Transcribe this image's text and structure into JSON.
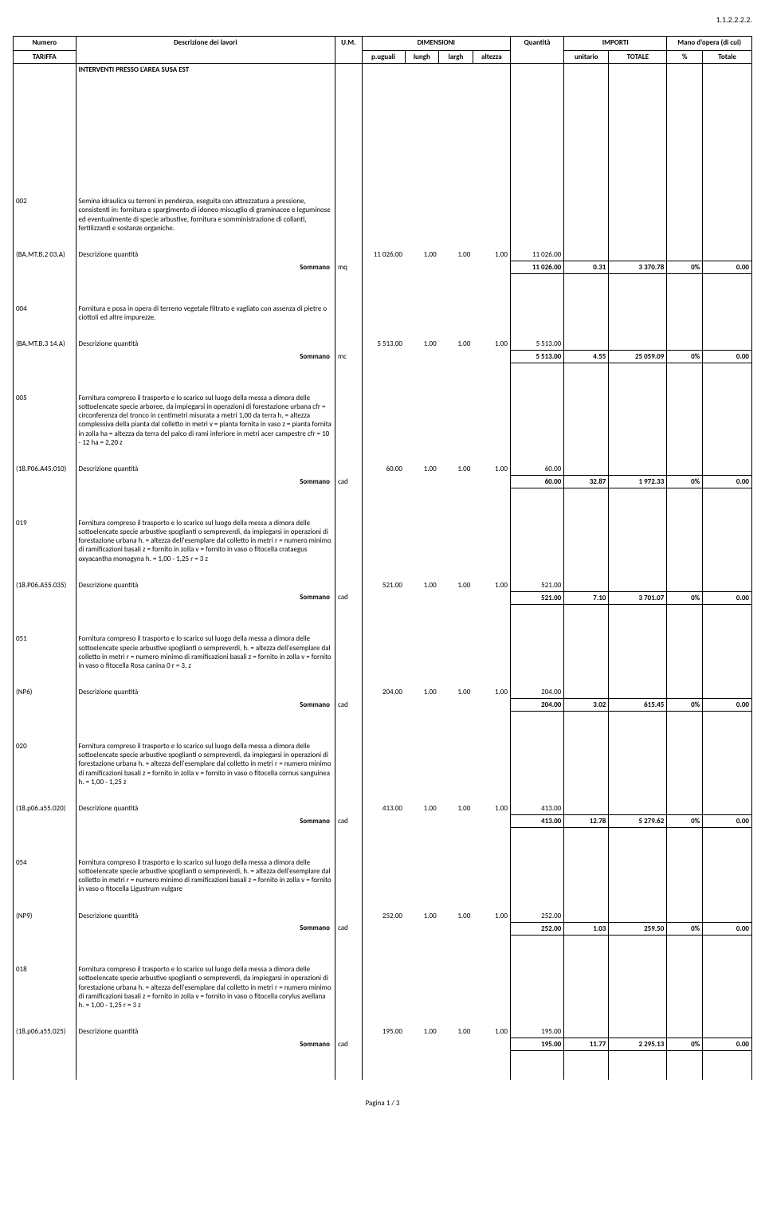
{
  "docref": "1.1.2.2.2.2.",
  "header": {
    "numero": "Numero",
    "tariffa": "TARIFFA",
    "descrizione": "Descrizione dei lavori",
    "um": "U.M.",
    "dimensioni": "DIMENSIONI",
    "puguali": "p.uguali",
    "lungh": "lungh",
    "largh": "largh",
    "altezza": "altezza",
    "quantita": "Quantità",
    "importi": "IMPORTI",
    "unitario": "unitario",
    "totale": "TOTALE",
    "mano": "Mano d'opera (di cui)",
    "percent": "%",
    "mtotale": "Totale"
  },
  "section_title": "INTERVENTI PRESSO L'AREA SUSA EST",
  "sommano_label": "Sommano",
  "descq_label": "Descrizione quantità",
  "rows": [
    {
      "num": "002",
      "desc": "Semina idraulica su terreni in pendenza, eseguita con attrezzatura a pressione, consistenti in: fornitura e spargimento di idoneo miscuglio di graminacee e leguminose ed eventualmente di specie arbustive, fornitura e somministrazione di collanti, fertilizzanti e sostanze organiche.",
      "code": "(BA.MT.B.2 03.A)",
      "um": "mq",
      "pu": "11 026.00",
      "l": "1.00",
      "la": "1.00",
      "al": "1.00",
      "q": "11 026.00",
      "sq": "11 026.00",
      "un": "0.31",
      "tot": "3 370.78",
      "pc": "0%",
      "mt": "0.00"
    },
    {
      "num": "004",
      "desc": "Fornitura e posa in opera di terreno vegetale filtrato e vagliato con assenza di pietre o ciottoli ed altre impurezze.",
      "code": "(BA.MT.B.3 14.A)",
      "um": "mc",
      "pu": "5 513.00",
      "l": "1.00",
      "la": "1.00",
      "al": "1.00",
      "q": "5 513.00",
      "sq": "5 513.00",
      "un": "4.55",
      "tot": "25 059.09",
      "pc": "0%",
      "mt": "0.00"
    },
    {
      "num": "005",
      "desc": "Fornitura compreso il trasporto e lo scarico sul luogo della messa a dimora delle sottoelencate specie arboree, da impiegarsi in operazioni di forestazione urbana cfr = circonferenza del tronco in centimetri misurata a metri 1,00 da terra h. = altezza complessiva della pianta dal colletto in metri v = pianta fornita in vaso z = pianta fornita in zolla ha = altezza da terra del palco di rami inferiore in metri acer campestre cfr = 10 - 12 ha = 2,20 z",
      "code": "(18.P06.A45.010)",
      "um": "cad",
      "pu": "60.00",
      "l": "1.00",
      "la": "1.00",
      "al": "1.00",
      "q": "60.00",
      "sq": "60.00",
      "un": "32.87",
      "tot": "1 972.33",
      "pc": "0%",
      "mt": "0.00"
    },
    {
      "num": "019",
      "desc": "Fornitura compreso il trasporto e lo scarico sul luogo della messa a dimora delle sottoelencate specie arbustive spoglianti o sempreverdi, da impiegarsi in operazioni di forestazione urbana h. = altezza dell'esemplare dal colletto in metri r = numero minimo di ramificazioni basali z = fornito in zolla v = fornito in vaso o fitocella crataegus oxyacantha monogyna h. = 1,00 - 1,25 r = 3 z",
      "code": "(18.P06.A55.035)",
      "um": "cad",
      "pu": "521.00",
      "l": "1.00",
      "la": "1.00",
      "al": "1.00",
      "q": "521.00",
      "sq": "521.00",
      "un": "7.10",
      "tot": "3 701.07",
      "pc": "0%",
      "mt": "0.00"
    },
    {
      "num": "051",
      "desc": "Fornitura compreso il trasporto e lo scarico sul luogo della messa a dimora delle sottoelencate specie arbustive spoglianti o sempreverdi, h. = altezza dell'esemplare dal colletto in metri r = numero minimo di ramificazioni basali z = fornito in zolla v = fornito in vaso o fitocella Rosa canina 0 r = 3, z",
      "code": "(NP6)",
      "um": "cad",
      "pu": "204.00",
      "l": "1.00",
      "la": "1.00",
      "al": "1.00",
      "q": "204.00",
      "sq": "204.00",
      "un": "3.02",
      "tot": "615.45",
      "pc": "0%",
      "mt": "0.00"
    },
    {
      "num": "020",
      "desc": "Fornitura compreso il trasporto e lo scarico sul luogo della messa a dimora delle sottoelencate specie arbustive spoglianti o sempreverdi, da impiegarsi in operazioni di forestazione urbana h. = altezza dell'esemplare dal colletto in metri r = numero minimo di ramificazioni basali z = fornito in zolla v = fornito in vaso o fitocella cornus sanguinea h. = 1,00 - 1,25 z",
      "code": "(18.p06.a55.020)",
      "um": "cad",
      "pu": "413.00",
      "l": "1.00",
      "la": "1.00",
      "al": "1.00",
      "q": "413.00",
      "sq": "413.00",
      "un": "12.78",
      "tot": "5 279.62",
      "pc": "0%",
      "mt": "0.00"
    },
    {
      "num": "054",
      "desc": "Fornitura compreso il trasporto e lo scarico sul luogo della messa a dimora delle sottoelencate specie arbustive spoglianti o sempreverdi, h. = altezza dell'esemplare dal colletto in metri r = numero minimo di ramificazioni basali z = fornito in zolla v = fornito in vaso o fitocella Ligustrum vulgare",
      "code": "(NP9)",
      "um": "cad",
      "pu": "252.00",
      "l": "1.00",
      "la": "1.00",
      "al": "1.00",
      "q": "252.00",
      "sq": "252.00",
      "un": "1.03",
      "tot": "259.50",
      "pc": "0%",
      "mt": "0.00"
    },
    {
      "num": "018",
      "desc": "Fornitura compreso il trasporto e lo scarico sul luogo della messa a dimora delle sottoelencate specie arbustive spoglianti o sempreverdi, da impiegarsi in operazioni di forestazione urbana h. = altezza dell'esemplare dal colletto in metri r = numero minimo di ramificazioni basali z = fornito in zolla v = fornito in vaso o fitocella corylus avellana h. = 1,00 - 1,25 r = 3 z",
      "code": "(18.p06.a55.025)",
      "um": "cad",
      "pu": "195.00",
      "l": "1.00",
      "la": "1.00",
      "al": "1.00",
      "q": "195.00",
      "sq": "195.00",
      "un": "11.77",
      "tot": "2 295.13",
      "pc": "0%",
      "mt": "0.00"
    }
  ],
  "footer": "Pagina 1 / 3"
}
